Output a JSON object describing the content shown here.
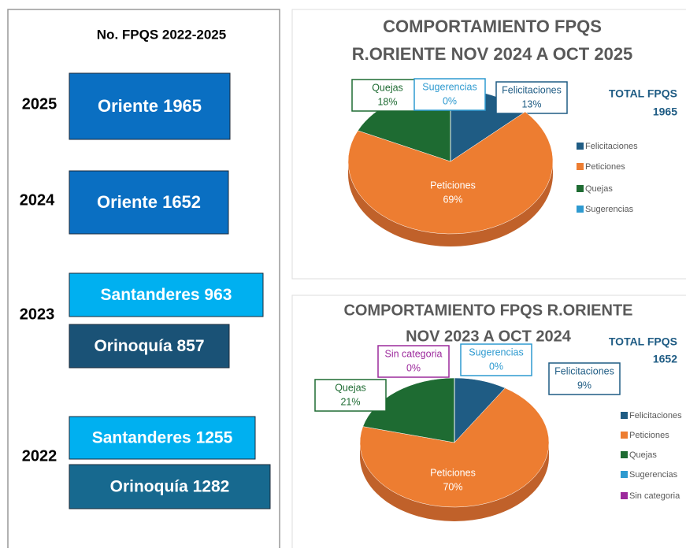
{
  "left_panel": {
    "title": "No. FPQS 2022-2025",
    "rows": [
      {
        "year": "2025",
        "boxes": [
          "Oriente 1965"
        ]
      },
      {
        "year": "2024",
        "boxes": [
          "Oriente 1652"
        ]
      },
      {
        "year": "2023",
        "boxes": [
          "Santanderes 963",
          "Orinoquía 857"
        ]
      },
      {
        "year": "2022",
        "boxes": [
          "Santanderes 1255",
          "Orinoquía 1282"
        ]
      }
    ]
  },
  "chart_data": [
    {
      "type": "pie",
      "title": [
        "COMPORTAMIENTO FPQS",
        "R.ORIENTE NOV 2024 A OCT 2025"
      ],
      "total_label": "TOTAL FPQS",
      "total_value": "1965",
      "categories": [
        "Felicitaciones",
        "Peticiones",
        "Quejas",
        "Sugerencias"
      ],
      "values": [
        13,
        69,
        18,
        0
      ],
      "value_labels": [
        "13%",
        "69%",
        "18%",
        "0%"
      ],
      "colors": [
        "#1f5c84",
        "#ed7d31",
        "#1e6b32",
        "#2e9ad0"
      ],
      "legend": "right"
    },
    {
      "type": "pie",
      "title": [
        "COMPORTAMIENTO FPQS R.ORIENTE",
        "NOV 2023 A OCT 2024"
      ],
      "total_label": "TOTAL FPQS",
      "total_value": "1652",
      "categories": [
        "Felicitaciones",
        "Peticiones",
        "Quejas",
        "Sugerencias",
        "Sin categoria"
      ],
      "values": [
        9,
        70,
        21,
        0,
        0
      ],
      "value_labels": [
        "9%",
        "70%",
        "21%",
        "0%",
        "0%"
      ],
      "colors": [
        "#1f5c84",
        "#ed7d31",
        "#1e6b32",
        "#2e9ad0",
        "#9c2a9c"
      ],
      "legend": "right"
    }
  ]
}
